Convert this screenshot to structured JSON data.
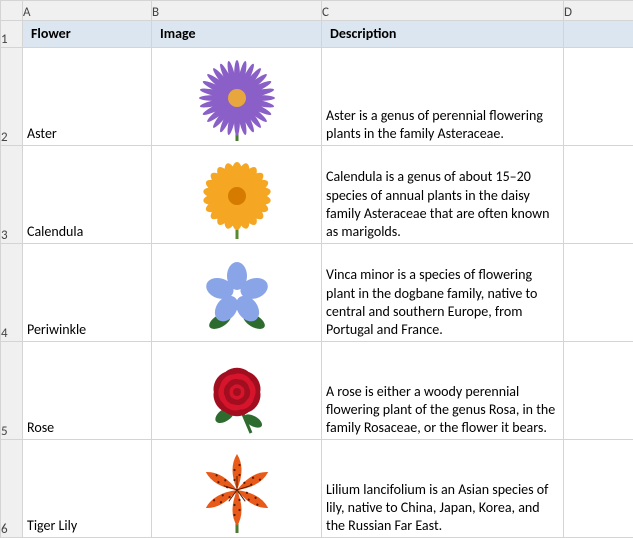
{
  "columns": [
    "A",
    "B",
    "C",
    "D"
  ],
  "headers": {
    "A": "Flower",
    "B": "Image",
    "C": "Description"
  },
  "header_row_bg": "#dce6f1",
  "grid_color": "#d4d4d4",
  "hdr_bg": "#f0f0f0",
  "rows": [
    {
      "num": 2,
      "flower": "Aster",
      "description": "Aster is a genus of perennial flowering plants in the family Asteraceae.",
      "image": {
        "type": "daisy",
        "petal_color": "#8a5fc7",
        "center_color": "#e8a63e",
        "stem_color": "#4a7a2e",
        "petal_count": 28,
        "petal_len": 34,
        "petal_w": 3
      }
    },
    {
      "num": 3,
      "flower": "Calendula",
      "description": "Calendula is a genus of about 15–20 species of annual plants in the daisy family Asteraceae that are often known as marigolds.",
      "image": {
        "type": "daisy",
        "petal_color": "#f5a623",
        "center_color": "#d47b00",
        "stem_color": "#5a8a2e",
        "petal_count": 22,
        "petal_len": 30,
        "petal_w": 6
      }
    },
    {
      "num": 4,
      "flower": "Periwinkle",
      "description": "Vinca minor is a species of flowering plant in the dogbane family, native to central and southern Europe, from Portugal and France.",
      "image": {
        "type": "fivepetal",
        "petal_color": "#8aa4e8",
        "center_color": "#ffffff",
        "leaf_color": "#2e6b2e",
        "petal_count": 5,
        "petal_len": 28,
        "petal_w": 20
      }
    },
    {
      "num": 5,
      "flower": "Rose",
      "description": "A rose is either a woody perennial flowering plant of the genus Rosa, in the family Rosaceae, or the flower it bears.",
      "image": {
        "type": "rose",
        "petal_color": "#d6142b",
        "petal_color2": "#a00e1f",
        "stem_color": "#2e6b2e",
        "leaf_color": "#2e6b2e"
      }
    },
    {
      "num": 6,
      "flower": "Tiger Lily",
      "description": "Lilium lancifolium is an Asian species of lily, native to China, Japan, Korea, and the Russian Far East.",
      "image": {
        "type": "lily",
        "petal_color": "#e85a1a",
        "spot_color": "#5a1a00",
        "stem_color": "#4a7a2e",
        "petal_count": 6
      }
    }
  ]
}
